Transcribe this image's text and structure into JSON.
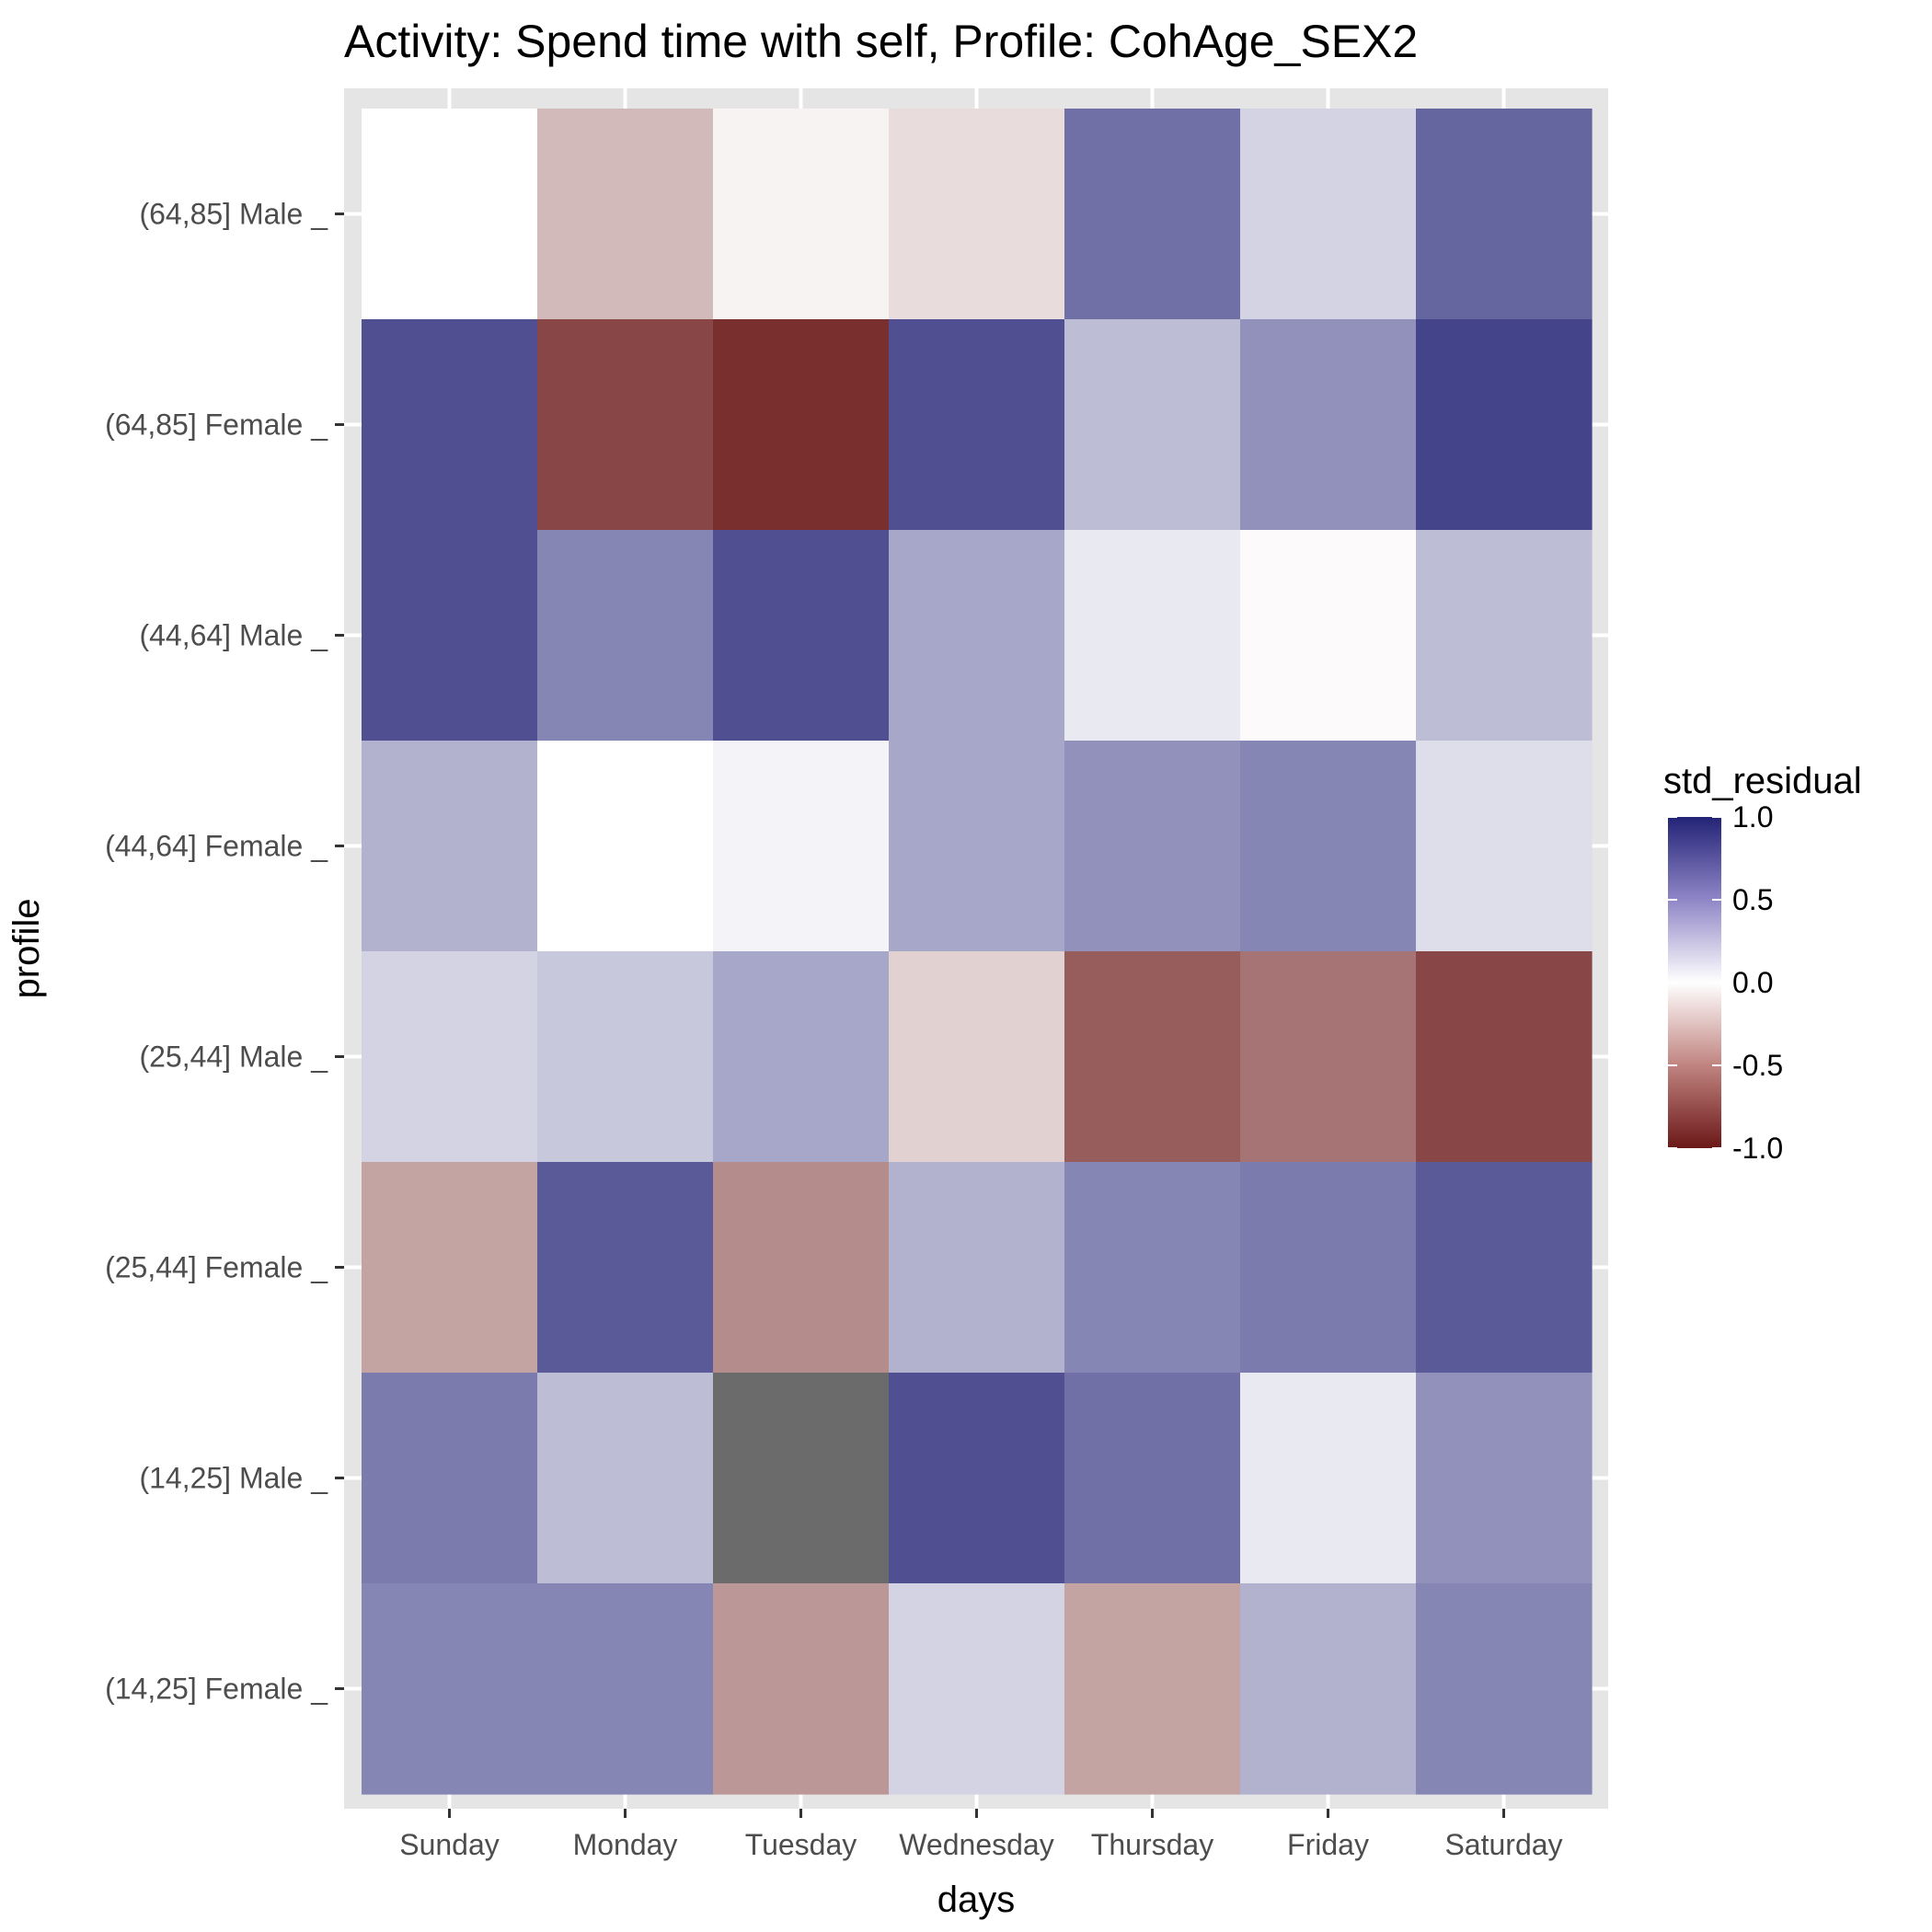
{
  "chart_data": {
    "type": "heatmap",
    "title": "Activity: Spend time with self, Profile: CohAge_SEX2",
    "xlabel": "days",
    "ylabel": "profile",
    "x_categories": [
      "Sunday",
      "Monday",
      "Tuesday",
      "Wednesday",
      "Thursday",
      "Friday",
      "Saturday"
    ],
    "y_categories": [
      "(64,85] Male _",
      "(64,85] Female _",
      "(44,64] Male _",
      "(44,64] Female _",
      "(25,44] Male _",
      "(25,44] Female _",
      "(14,25] Male _",
      "(14,25] Female _"
    ],
    "values": [
      [
        0.0,
        -0.3,
        -0.05,
        -0.15,
        0.65,
        0.2,
        0.7
      ],
      [
        0.8,
        -0.8,
        -0.9,
        0.8,
        0.3,
        0.5,
        0.85
      ],
      [
        0.8,
        0.55,
        0.8,
        0.4,
        0.1,
        -0.02,
        0.3
      ],
      [
        0.35,
        0.0,
        0.05,
        0.4,
        0.5,
        0.55,
        0.15
      ],
      [
        0.2,
        0.25,
        0.4,
        -0.2,
        -0.7,
        -0.6,
        -0.8
      ],
      [
        -0.4,
        0.75,
        -0.5,
        0.35,
        0.55,
        0.6,
        0.75
      ],
      [
        0.6,
        0.3,
        null,
        0.8,
        0.65,
        0.1,
        0.5
      ],
      [
        0.55,
        0.55,
        -0.45,
        0.2,
        -0.4,
        0.35,
        0.55
      ]
    ],
    "na_color": "#6b6b6b",
    "legend": {
      "title": "std_residual",
      "position": "right",
      "range": [
        -1.0,
        1.0
      ],
      "breaks": [
        "1.0",
        "0.5",
        "0.0",
        "-0.5",
        "-1.0"
      ],
      "low_color": "#6b1818",
      "mid_color": "#ffffff",
      "high_color": "#232377"
    },
    "grid": true,
    "panel_background": "#e5e5e5"
  }
}
